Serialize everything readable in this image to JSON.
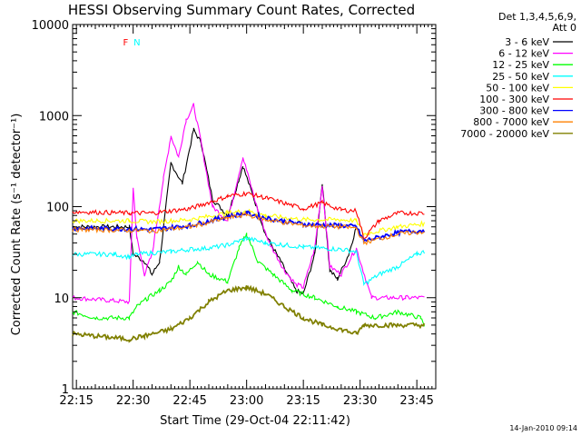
{
  "chart_data": {
    "type": "line",
    "title": "HESSI Observing Summary Count Rates, Corrected",
    "xlabel": "Start Time (29-Oct-04 22:11:42)",
    "ylabel": "Corrected Count Rate (s⁻¹ detector⁻¹)",
    "yscale": "log",
    "xlim_minutes": [
      -1,
      50
    ],
    "xlim_display": [
      "22:14",
      "23:50"
    ],
    "ylim": [
      1,
      10000
    ],
    "y_ticks": [
      {
        "value": 1,
        "label": "1"
      },
      {
        "value": 10,
        "label": "10"
      },
      {
        "value": 100,
        "label": "100"
      },
      {
        "value": 1000,
        "label": "1000"
      },
      {
        "value": 10000,
        "label": "10000"
      }
    ],
    "x_ticks": [
      {
        "value": "22:15",
        "label": "22:15"
      },
      {
        "value": "22:30",
        "label": "22:30"
      },
      {
        "value": "22:45",
        "label": "22:45"
      },
      {
        "value": "23:00",
        "label": "23:00"
      },
      {
        "value": "23:15",
        "label": "23:15"
      },
      {
        "value": "23:30",
        "label": "23:30"
      },
      {
        "value": "23:45",
        "label": "23:45"
      }
    ],
    "legend_header": [
      "Det 1,3,4,5,6,9,",
      "Att 0"
    ],
    "legend_position": "right",
    "series": [
      {
        "name": "3 - 6 keV",
        "color": "#000000",
        "x": [
          "22:14",
          "22:29",
          "22:30",
          "22:33",
          "22:35",
          "22:37",
          "22:40",
          "22:43",
          "22:46",
          "22:48",
          "22:51",
          "22:55",
          "22:58",
          "22:59",
          "23:02",
          "23:05",
          "23:09",
          "23:13",
          "23:15",
          "23:18",
          "23:20",
          "23:22",
          "23:24",
          "23:27",
          "23:29"
        ],
        "values": [
          60,
          60,
          30,
          25,
          18,
          25,
          300,
          180,
          700,
          500,
          120,
          80,
          200,
          280,
          120,
          50,
          25,
          12,
          11,
          30,
          180,
          20,
          16,
          30,
          60
        ]
      },
      {
        "name": "6 - 12 keV",
        "color": "#ff00ff",
        "x": [
          "22:14",
          "22:29",
          "22:30",
          "22:31",
          "22:33",
          "22:35",
          "22:38",
          "22:40",
          "22:42",
          "22:44",
          "22:46",
          "22:48",
          "22:51",
          "22:55",
          "22:59",
          "23:00",
          "23:03",
          "23:06",
          "23:10",
          "23:13",
          "23:15",
          "23:18",
          "23:20",
          "23:22",
          "23:25",
          "23:29",
          "23:33",
          "23:37",
          "23:42",
          "23:47"
        ],
        "values": [
          10,
          9,
          160,
          45,
          18,
          30,
          200,
          600,
          350,
          900,
          1300,
          500,
          100,
          70,
          350,
          250,
          90,
          40,
          20,
          14,
          13,
          35,
          170,
          22,
          18,
          35,
          10,
          10,
          10,
          10
        ]
      },
      {
        "name": "12 - 25 keV",
        "color": "#00ff00",
        "x": [
          "22:14",
          "22:20",
          "22:29",
          "22:31",
          "22:34",
          "22:37",
          "22:40",
          "22:42",
          "22:44",
          "22:47",
          "22:50",
          "22:55",
          "22:58",
          "23:00",
          "23:03",
          "23:07",
          "23:12",
          "23:18",
          "23:24",
          "23:29",
          "23:34",
          "23:40",
          "23:46",
          "23:47"
        ],
        "values": [
          7,
          6,
          6,
          8,
          10,
          12,
          15,
          22,
          18,
          25,
          18,
          15,
          35,
          50,
          25,
          18,
          12,
          10,
          8,
          7,
          6,
          7,
          6,
          5
        ]
      },
      {
        "name": "25 - 50 keV",
        "color": "#00ffff",
        "x": [
          "22:14",
          "22:25",
          "22:29",
          "22:31",
          "22:35",
          "22:40",
          "22:45",
          "22:50",
          "22:55",
          "23:00",
          "23:05",
          "23:10",
          "23:15",
          "23:20",
          "23:25",
          "23:29",
          "23:31",
          "23:35",
          "23:40",
          "23:45",
          "23:47"
        ],
        "values": [
          30,
          30,
          28,
          30,
          31,
          32,
          34,
          35,
          38,
          45,
          40,
          38,
          36,
          35,
          34,
          32,
          14,
          18,
          22,
          30,
          32
        ]
      },
      {
        "name": "50 - 100 keV",
        "color": "#ffff00",
        "x": [
          "22:14",
          "22:29",
          "22:35",
          "22:45",
          "22:55",
          "23:00",
          "23:05",
          "23:15",
          "23:25",
          "23:29",
          "23:31",
          "23:40",
          "23:47"
        ],
        "values": [
          70,
          70,
          68,
          72,
          85,
          90,
          80,
          72,
          72,
          70,
          50,
          60,
          65
        ]
      },
      {
        "name": "100 - 300 keV",
        "color": "#ff0000",
        "x": [
          "22:14",
          "22:29",
          "22:35",
          "22:45",
          "22:55",
          "23:00",
          "23:05",
          "23:15",
          "23:20",
          "23:25",
          "23:29",
          "23:31",
          "23:35",
          "23:40",
          "23:47"
        ],
        "values": [
          88,
          85,
          85,
          95,
          130,
          140,
          125,
          95,
          110,
          92,
          90,
          45,
          70,
          85,
          85
        ]
      },
      {
        "name": "300 - 800 keV",
        "color": "#0000ff",
        "x": [
          "22:14",
          "22:29",
          "22:35",
          "22:45",
          "22:55",
          "23:00",
          "23:05",
          "23:15",
          "23:25",
          "23:29",
          "23:31",
          "23:40",
          "23:47"
        ],
        "values": [
          58,
          57,
          56,
          62,
          78,
          85,
          75,
          64,
          62,
          60,
          42,
          52,
          55
        ]
      },
      {
        "name": "800 - 7000 keV",
        "color": "#ff8000",
        "x": [
          "22:14",
          "22:29",
          "22:35",
          "22:45",
          "22:55",
          "23:00",
          "23:05",
          "23:15",
          "23:25",
          "23:29",
          "23:31",
          "23:40",
          "23:47"
        ],
        "values": [
          56,
          55,
          54,
          60,
          75,
          82,
          72,
          62,
          60,
          58,
          40,
          50,
          53
        ]
      },
      {
        "name": "7000 - 20000 keV",
        "color": "#808000",
        "x": [
          "22:14",
          "22:29",
          "22:33",
          "22:40",
          "22:45",
          "22:50",
          "22:55",
          "23:00",
          "23:05",
          "23:10",
          "23:15",
          "23:20",
          "23:25",
          "23:29",
          "23:31",
          "23:40",
          "23:47"
        ],
        "values": [
          4,
          3.5,
          3.8,
          4.5,
          6,
          9,
          12,
          13,
          11,
          8,
          6,
          5,
          4.5,
          4,
          5,
          5,
          5
        ]
      }
    ],
    "annotations": [
      {
        "label": "F",
        "color": "#ff0000",
        "x": "22:28"
      },
      {
        "label": "N",
        "color": "#00ffff",
        "x": "22:31"
      }
    ],
    "footer_date": "14-Jan-2010 09:14"
  }
}
